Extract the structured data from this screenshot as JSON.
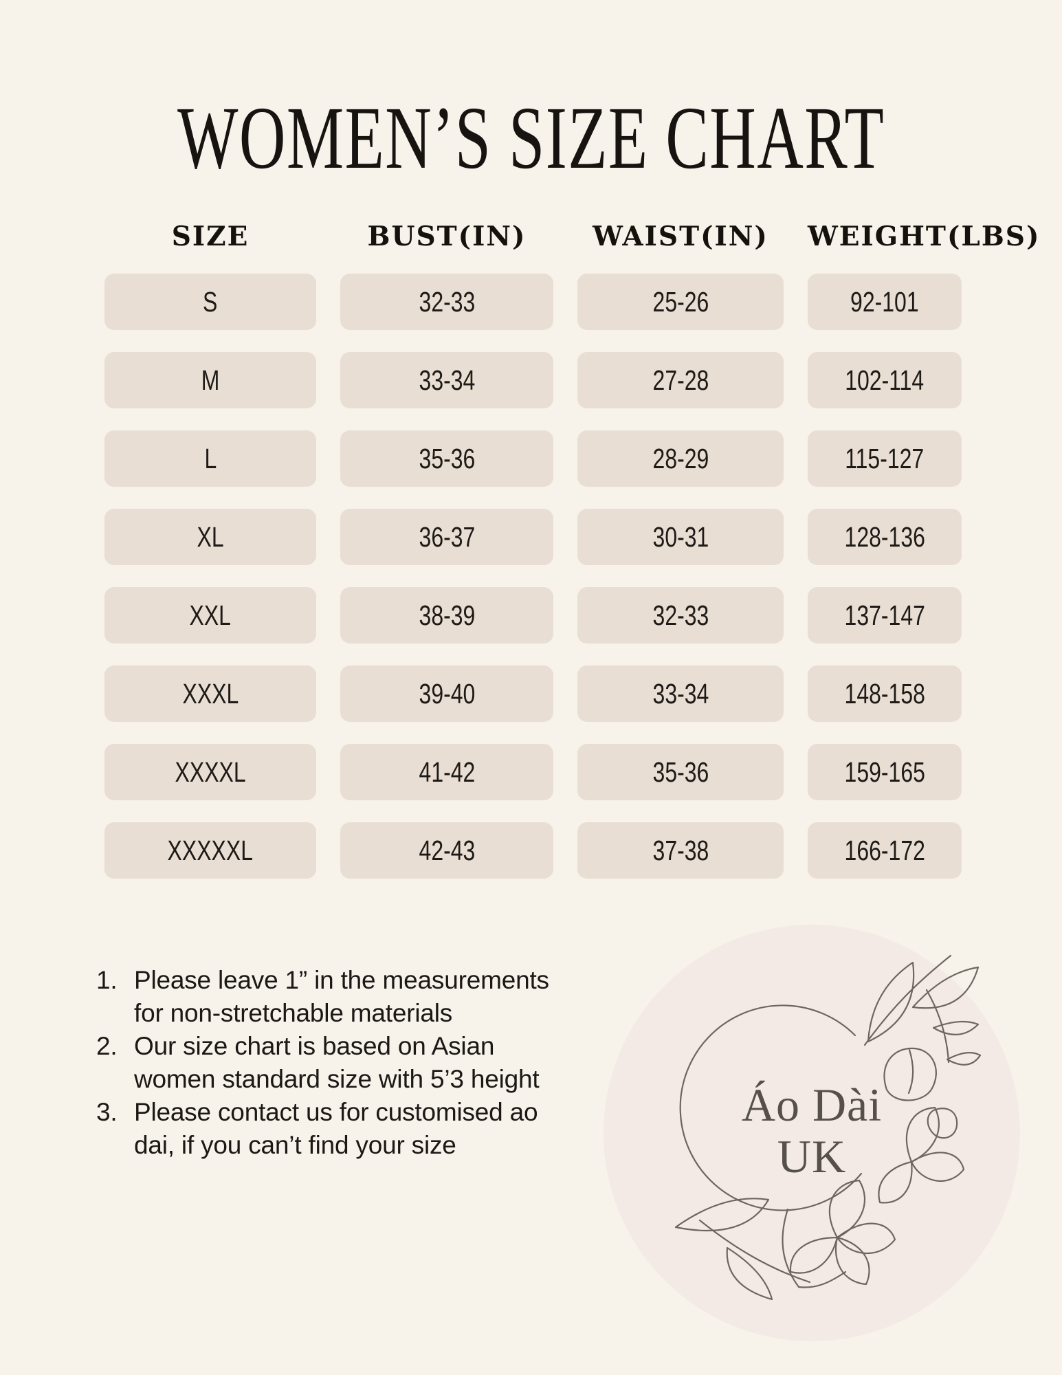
{
  "page": {
    "title": "WOMEN’S SIZE CHART",
    "background_color": "#f7f2ea",
    "ink_color": "#1b1815"
  },
  "table": {
    "columns": [
      "SIZE",
      "BUST(IN)",
      "WAIST(IN)",
      "WEIGHT(LBS)"
    ],
    "cell_background": "#e9ded3",
    "rows": [
      {
        "size": "S",
        "bust": "32-33",
        "waist": "25-26",
        "weight": "92-101"
      },
      {
        "size": "M",
        "bust": "33-34",
        "waist": "27-28",
        "weight": "102-114"
      },
      {
        "size": "L",
        "bust": "35-36",
        "waist": "28-29",
        "weight": "115-127"
      },
      {
        "size": "XL",
        "bust": "36-37",
        "waist": "30-31",
        "weight": "128-136"
      },
      {
        "size": "XXL",
        "bust": "38-39",
        "waist": "32-33",
        "weight": "137-147"
      },
      {
        "size": "XXXL",
        "bust": "39-40",
        "waist": "33-34",
        "weight": "148-158"
      },
      {
        "size": "XXXXL",
        "bust": "41-42",
        "waist": "35-36",
        "weight": "159-165"
      },
      {
        "size": "XXXXXL",
        "bust": "42-43",
        "waist": "37-38",
        "weight": "166-172"
      }
    ]
  },
  "notes": [
    {
      "number": "1.",
      "lines": [
        "Please leave 1” in the measurements",
        "for non-stretchable materials"
      ]
    },
    {
      "number": "2.",
      "lines": [
        "Our size chart is based on Asian",
        "women standard size with 5’3 height"
      ]
    },
    {
      "number": "3.",
      "lines": [
        "Please contact us for customised ao",
        "dai, if you can’t find your size"
      ]
    }
  ],
  "logo": {
    "line1": "Áo Dài",
    "line2": "UK",
    "badge_background": "#f3eae5",
    "text_color": "#55504a",
    "art_color": "#6e6560"
  }
}
